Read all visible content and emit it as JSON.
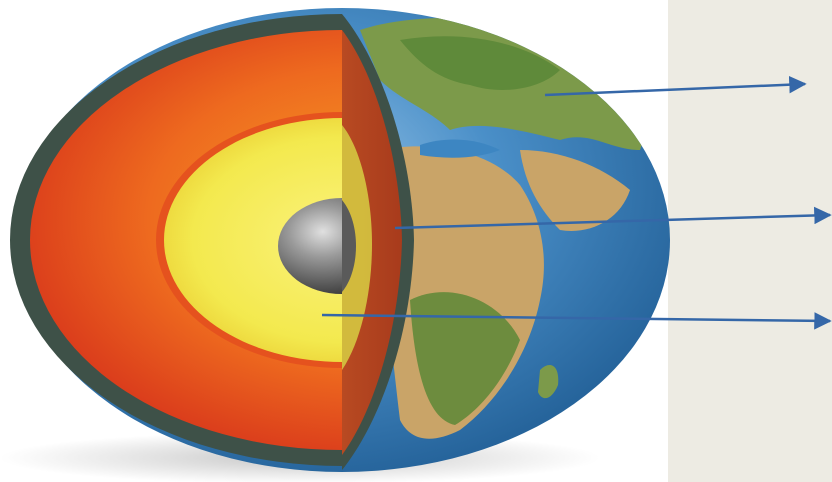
{
  "diagram": {
    "subject": "earth-cross-section",
    "layers": [
      "crust",
      "mantle",
      "outer-core",
      "inner-core"
    ],
    "pointer_count": 3,
    "label_panel": {
      "labels": []
    },
    "colors": {
      "background": "#ffffff",
      "label_panel": "#edebe3",
      "ocean": "#3d86c2",
      "crust": "#3e5148",
      "mantle": "#d8371b",
      "outer_core": "#f3e94e",
      "inner_core": "#808080",
      "arrow": "#3567a8"
    }
  }
}
